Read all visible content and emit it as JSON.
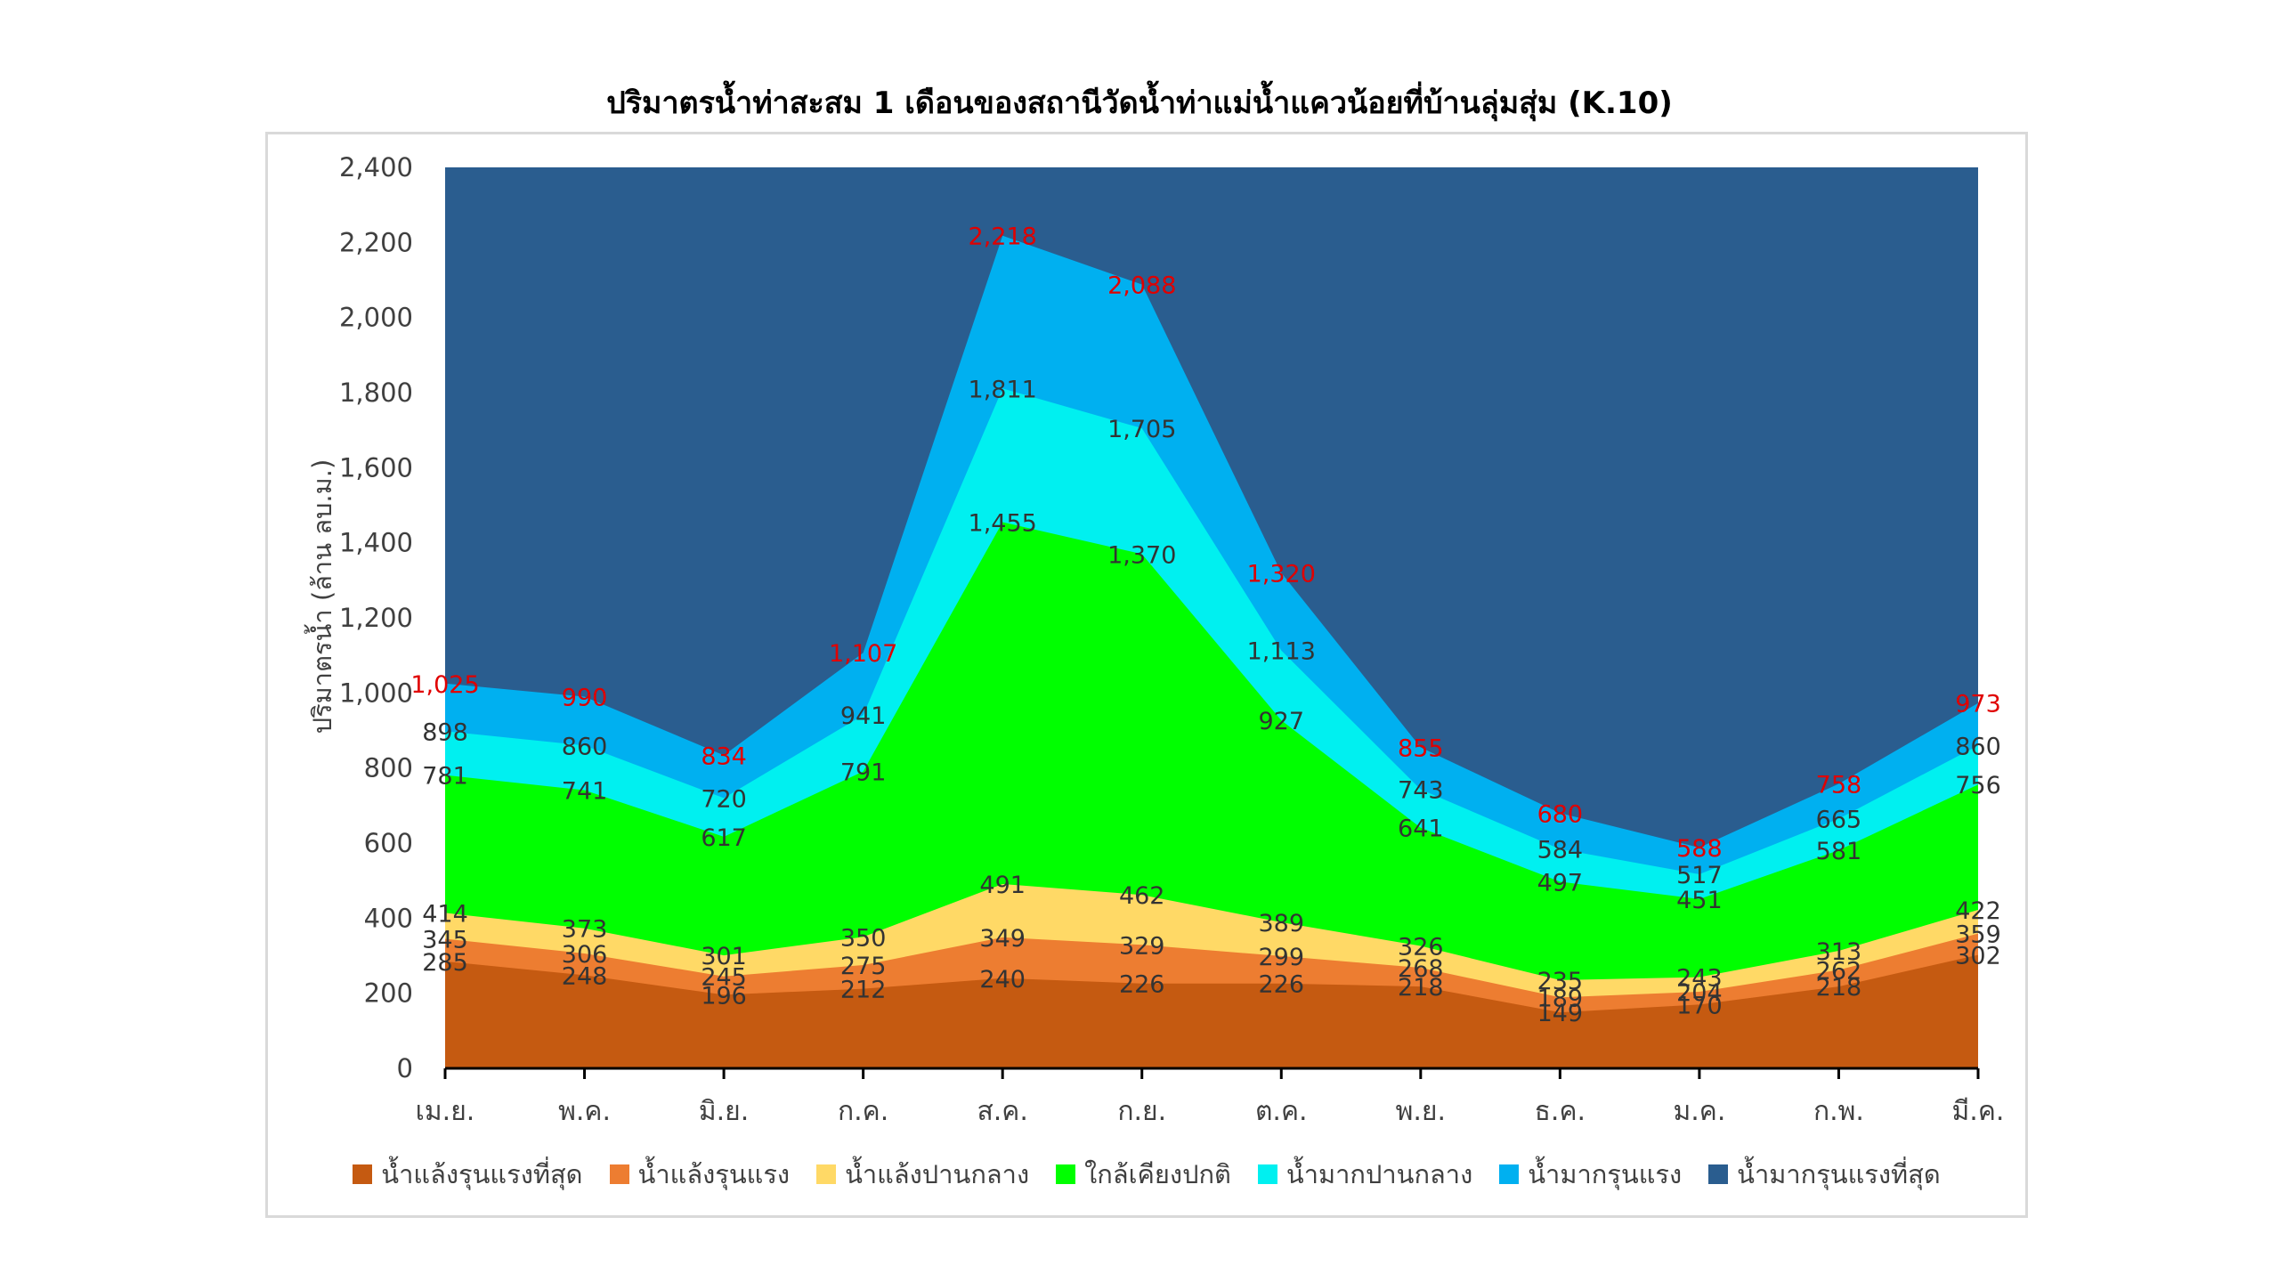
{
  "chart_data": {
    "type": "area",
    "title": "ปริมาตรน้ำท่าสะสม 1 เดือนของสถานีวัดน้ำท่าแม่น้ำแควน้อยที่บ้านลุ่มสุ่ม (K.10)",
    "xlabel": "",
    "ylabel": "ปริมาตรน้ำ (ล้าน ลบ.ม.)",
    "ylim": [
      0,
      2400
    ],
    "yticks": [
      "0",
      "200",
      "400",
      "600",
      "800",
      "1,000",
      "1,200",
      "1,400",
      "1,600",
      "1,800",
      "2,000",
      "2,200",
      "2,400"
    ],
    "categories": [
      "เม.ย.",
      "พ.ค.",
      "มิ.ย.",
      "ก.ค.",
      "ส.ค.",
      "ก.ย.",
      "ต.ค.",
      "พ.ย.",
      "ธ.ค.",
      "ม.ค.",
      "ก.พ.",
      "มี.ค."
    ],
    "legend_position": "bottom",
    "grid": false,
    "series": [
      {
        "name": "น้ำแล้งรุนแรงที่สุด",
        "color": "#c55a11",
        "values": [
          285,
          248,
          196,
          212,
          240,
          226,
          226,
          218,
          149,
          170,
          218,
          302
        ],
        "labels": [
          "285",
          "248",
          "196",
          "212",
          "240",
          "226",
          "226",
          "218",
          "149",
          "170",
          "218",
          "302"
        ]
      },
      {
        "name": "น้ำแล้งรุนแรง",
        "color": "#ed7d31",
        "values": [
          345,
          306,
          245,
          275,
          349,
          329,
          299,
          268,
          189,
          204,
          262,
          359
        ],
        "labels": [
          "345",
          "306",
          "245",
          "275",
          "349",
          "329",
          "299",
          "268",
          "189",
          "204",
          "262",
          "359"
        ]
      },
      {
        "name": "น้ำแล้งปานกลาง",
        "color": "#ffd966",
        "values": [
          414,
          373,
          301,
          350,
          491,
          462,
          389,
          326,
          235,
          243,
          313,
          422
        ],
        "labels": [
          "414",
          "373",
          "301",
          "350",
          "491",
          "462",
          "389",
          "326",
          "235",
          "243",
          "313",
          "422"
        ]
      },
      {
        "name": "ใกล้เคียงปกติ",
        "color": "#00ff00",
        "values": [
          781,
          741,
          617,
          791,
          1455,
          1370,
          927,
          641,
          497,
          451,
          581,
          756
        ],
        "labels": [
          "781",
          "741",
          "617",
          "791",
          "1,455",
          "1,370",
          "927",
          "641",
          "497",
          "451",
          "581",
          "756"
        ]
      },
      {
        "name": "น้ำมากปานกลาง",
        "color": "#00f0f0",
        "values": [
          898,
          860,
          720,
          941,
          1811,
          1705,
          1113,
          743,
          584,
          517,
          665,
          860
        ],
        "labels": [
          "898",
          "860",
          "720",
          "941",
          "1,811",
          "1,705",
          "1,113",
          "743",
          "584",
          "517",
          "665",
          "860"
        ]
      },
      {
        "name": "น้ำมากรุนแรง",
        "color": "#00b0f0",
        "values": [
          1025,
          990,
          834,
          1107,
          2218,
          2088,
          1320,
          855,
          680,
          588,
          758,
          973
        ],
        "labels": [
          "1,025",
          "990",
          "834",
          "1,107",
          "2,218",
          "2,088",
          "1,320",
          "855",
          "680",
          "588",
          "758",
          "973"
        ]
      },
      {
        "name": "น้ำมากรุนแรงที่สุด",
        "color": "#2a5d8f",
        "values": [
          2400,
          2400,
          2400,
          2400,
          2400,
          2400,
          2400,
          2400,
          2400,
          2400,
          2400,
          2400
        ],
        "labels": []
      }
    ],
    "label_colors": {
      "default": "#333333",
      "top_band": "#e00000"
    }
  }
}
